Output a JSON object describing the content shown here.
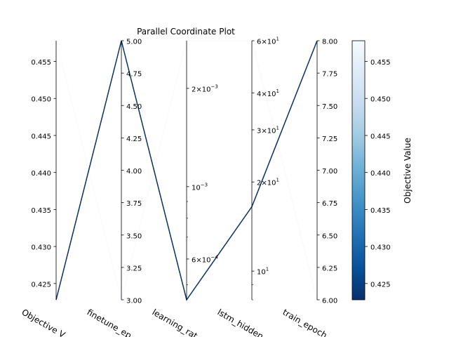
{
  "chart_data": {
    "type": "parallel_coordinates",
    "title": "Parallel Coordinate Plot",
    "axes": [
      {
        "name": "Objective Value",
        "label": "Objective V",
        "scale": "linear",
        "range": [
          0.4228,
          0.4578
        ],
        "ticks": [
          {
            "value": 0.425,
            "label": "0.425"
          },
          {
            "value": 0.43,
            "label": "0.430"
          },
          {
            "value": 0.435,
            "label": "0.435"
          },
          {
            "value": 0.44,
            "label": "0.440"
          },
          {
            "value": 0.445,
            "label": "0.445"
          },
          {
            "value": 0.45,
            "label": "0.450"
          },
          {
            "value": 0.455,
            "label": "0.455"
          }
        ]
      },
      {
        "name": "finetune_epochs",
        "label": "finetune_ep",
        "scale": "linear",
        "range": [
          3.0,
          5.0
        ],
        "ticks": [
          {
            "value": 3.0,
            "label": "3.00"
          },
          {
            "value": 3.25,
            "label": "3.25"
          },
          {
            "value": 3.5,
            "label": "3.50"
          },
          {
            "value": 3.75,
            "label": "3.75"
          },
          {
            "value": 4.0,
            "label": "4.00"
          },
          {
            "value": 4.25,
            "label": "4.25"
          },
          {
            "value": 4.5,
            "label": "4.50"
          },
          {
            "value": 4.75,
            "label": "4.75"
          },
          {
            "value": 5.0,
            "label": "5.00"
          }
        ]
      },
      {
        "name": "learning_rate",
        "label": "learning_rat",
        "scale": "log",
        "range": [
          0.00045,
          0.0028
        ],
        "ticks": [
          {
            "value": 0.0006,
            "base": "6×10",
            "exp": "−4"
          },
          {
            "value": 0.001,
            "base": "10",
            "exp": "−3"
          },
          {
            "value": 0.002,
            "base": "2×10",
            "exp": "−3"
          }
        ],
        "minor_ticks": [
          0.0005,
          0.0007,
          0.0008,
          0.0009
        ]
      },
      {
        "name": "lstm_hidden",
        "label": "lstm_hidden",
        "scale": "log",
        "range": [
          8,
          60
        ],
        "ticks": [
          {
            "value": 10,
            "base": "10",
            "exp": "1"
          },
          {
            "value": 20,
            "base": "2×10",
            "exp": "1"
          },
          {
            "value": 30,
            "base": "3×10",
            "exp": "1"
          },
          {
            "value": 40,
            "base": "4×10",
            "exp": "1"
          },
          {
            "value": 60,
            "base": "6×10",
            "exp": "1"
          }
        ],
        "minor_ticks": [
          8,
          9
        ]
      },
      {
        "name": "train_epochs",
        "label": "train_epoch",
        "scale": "linear",
        "range": [
          6.0,
          8.0
        ],
        "ticks": [
          {
            "value": 6.0,
            "label": "6.00"
          },
          {
            "value": 6.25,
            "label": "6.25"
          },
          {
            "value": 6.5,
            "label": "6.50"
          },
          {
            "value": 6.75,
            "label": "6.75"
          },
          {
            "value": 7.0,
            "label": "7.00"
          },
          {
            "value": 7.25,
            "label": "7.25"
          },
          {
            "value": 7.5,
            "label": "7.50"
          },
          {
            "value": 7.75,
            "label": "7.75"
          },
          {
            "value": 8.0,
            "label": "8.00"
          }
        ]
      }
    ],
    "trials": [
      {
        "values": [
          0.4228,
          5.0,
          0.00045,
          16.5,
          8.0
        ],
        "color": "#08306b"
      },
      {
        "values": [
          0.4578,
          3.0,
          0.0028,
          60,
          6.0
        ],
        "color": "#f7fbff"
      }
    ],
    "colorbar": {
      "label": "Objective Value",
      "range": [
        0.4228,
        0.4578
      ],
      "colors": [
        "#08306b",
        "#08519c",
        "#2171b5",
        "#4292c6",
        "#6baed6",
        "#9ecae1",
        "#c6dbef",
        "#deebf7",
        "#f7fbff"
      ],
      "ticks": [
        {
          "value": 0.425,
          "label": "0.425"
        },
        {
          "value": 0.43,
          "label": "0.430"
        },
        {
          "value": 0.435,
          "label": "0.435"
        },
        {
          "value": 0.44,
          "label": "0.440"
        },
        {
          "value": 0.445,
          "label": "0.445"
        },
        {
          "value": 0.45,
          "label": "0.450"
        },
        {
          "value": 0.455,
          "label": "0.455"
        }
      ]
    }
  }
}
